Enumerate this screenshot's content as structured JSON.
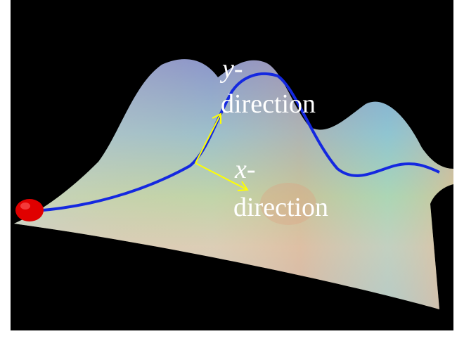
{
  "labels": [
    {
      "symbol": "y",
      "rest": "-",
      "line2": "direction"
    },
    {
      "symbol": "x",
      "rest": "-",
      "line2": "direction"
    }
  ]
}
